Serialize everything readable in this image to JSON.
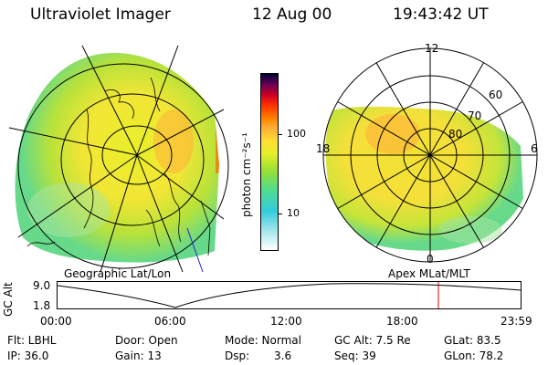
{
  "header": {
    "instrument": "Ultraviolet Imager",
    "date": "12 Aug 00",
    "time": "19:43:42 UT"
  },
  "colorbar": {
    "units": "photon cm⁻²s⁻¹",
    "tick_labels": [
      "100",
      "10"
    ],
    "scale": "log",
    "colors_bottom_to_top": [
      "#ffffff",
      "#aee8ee",
      "#33ccdd",
      "#55dd88",
      "#99e033",
      "#e8ef2a",
      "#ffdd33",
      "#ffaa33",
      "#ff8800",
      "#ff3300",
      "#cc0022",
      "#660055",
      "#000033"
    ]
  },
  "left_map": {
    "label": "Geographic Lat/Lon",
    "projection": "geographic"
  },
  "right_map": {
    "label": "Apex  MLat/MLT",
    "mlt_labels": [
      "12",
      "18",
      "6",
      "0"
    ],
    "mlat_labels": [
      "60",
      "70",
      "80"
    ]
  },
  "orbit_plot": {
    "ylabel": "GC Alt",
    "y_tick_labels": [
      "9.0",
      "1.8"
    ],
    "x_tick_labels": [
      "00:00",
      "06:00",
      "12:00",
      "18:00",
      "23:59"
    ],
    "current_time_marker": "19:43:42",
    "marker_color": "#dd0000"
  },
  "info": {
    "flt": "Flt: LBHL",
    "ip": "IP: 36.0",
    "door": "Door: Open",
    "gain": "Gain: 13",
    "mode": "Mode: Normal",
    "dsp_label": "Dsp:",
    "dsp_value": "3.6",
    "gc_alt": "GC Alt: 7.5 Re",
    "seq": "Seq: 39",
    "glat": "GLat: 83.5",
    "glon": "GLon: 78.2"
  }
}
